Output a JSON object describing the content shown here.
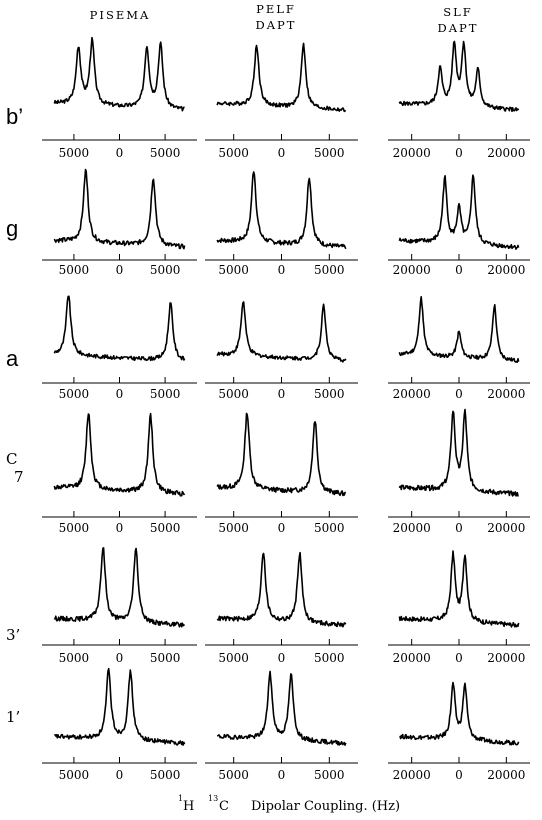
{
  "columns": [
    {
      "title": [
        "PISEMA"
      ]
    },
    {
      "title": [
        "PELF",
        "DAPT"
      ]
    },
    {
      "title": [
        "SLF",
        "DAPT"
      ]
    }
  ],
  "rows": [
    {
      "label": "b’"
    },
    {
      "label": "g"
    },
    {
      "label": "a"
    },
    {
      "label": "C",
      "sub": "7"
    },
    {
      "label": "3’"
    },
    {
      "label": "1’"
    }
  ],
  "xlabel": {
    "h_sup": "1",
    "h": "H",
    "c_sup": "13",
    "c": "C",
    "text": "Dipolar Coupling. (Hz)"
  },
  "chart_data": {
    "type": "line",
    "title": "",
    "xlabel": "1H 13C Dipolar Coupling. (Hz)",
    "ylabel": "",
    "panels": [
      {
        "row": "b’",
        "column": "PISEMA",
        "xlim": [
          -8500,
          8500
        ],
        "ticks": [
          -5000,
          0,
          5000
        ],
        "tick_labels": [
          "5000",
          "0",
          "5000"
        ],
        "peaks": [
          {
            "x": -4500,
            "h": 0.85
          },
          {
            "x": -3000,
            "h": 0.95
          },
          {
            "x": 3000,
            "h": 0.9
          },
          {
            "x": 4500,
            "h": 0.95
          }
        ]
      },
      {
        "row": "b’",
        "column": "PELF DAPT",
        "xlim": [
          -8000,
          8000
        ],
        "ticks": [
          -5000,
          0,
          5000
        ],
        "tick_labels": [
          "5000",
          "0",
          "5000"
        ],
        "peaks": [
          {
            "x": -2600,
            "h": 0.9
          },
          {
            "x": 2300,
            "h": 0.95
          }
        ]
      },
      {
        "row": "b’",
        "column": "SLF DAPT",
        "xlim": [
          -30000,
          30000
        ],
        "ticks": [
          -20000,
          0,
          20000
        ],
        "tick_labels": [
          "20000",
          "0",
          "20000"
        ],
        "peaks": [
          {
            "x": -8000,
            "h": 0.55
          },
          {
            "x": -2000,
            "h": 0.9
          },
          {
            "x": 2000,
            "h": 0.9
          },
          {
            "x": 8000,
            "h": 0.55
          }
        ]
      },
      {
        "row": "g",
        "column": "PISEMA",
        "xlim": [
          -8500,
          8500
        ],
        "ticks": [
          -5000,
          0,
          5000
        ],
        "tick_labels": [
          "5000",
          "0",
          "5000"
        ],
        "peaks": [
          {
            "x": -3700,
            "h": 0.95
          },
          {
            "x": 3700,
            "h": 0.9
          }
        ]
      },
      {
        "row": "g",
        "column": "PELF DAPT",
        "xlim": [
          -8000,
          8000
        ],
        "ticks": [
          -5000,
          0,
          5000
        ],
        "tick_labels": [
          "5000",
          "0",
          "5000"
        ],
        "peaks": [
          {
            "x": -2900,
            "h": 0.95
          },
          {
            "x": 2900,
            "h": 0.9
          }
        ]
      },
      {
        "row": "g",
        "column": "SLF DAPT",
        "xlim": [
          -30000,
          30000
        ],
        "ticks": [
          -20000,
          0,
          20000
        ],
        "tick_labels": [
          "20000",
          "0",
          "20000"
        ],
        "peaks": [
          {
            "x": -6000,
            "h": 0.85
          },
          {
            "x": 0,
            "h": 0.45
          },
          {
            "x": 6000,
            "h": 0.9
          }
        ]
      },
      {
        "row": "a",
        "column": "PISEMA",
        "xlim": [
          -8500,
          8500
        ],
        "ticks": [
          -5000,
          0,
          5000
        ],
        "tick_labels": [
          "5000",
          "0",
          "5000"
        ],
        "peaks": [
          {
            "x": -5600,
            "h": 0.95
          },
          {
            "x": 5600,
            "h": 0.9
          }
        ]
      },
      {
        "row": "a",
        "column": "PELF DAPT",
        "xlim": [
          -8000,
          8000
        ],
        "ticks": [
          -5000,
          0,
          5000
        ],
        "tick_labels": [
          "5000",
          "0",
          "5000"
        ],
        "peaks": [
          {
            "x": -4000,
            "h": 0.85
          },
          {
            "x": 4400,
            "h": 0.85
          }
        ]
      },
      {
        "row": "a",
        "column": "SLF DAPT",
        "xlim": [
          -30000,
          30000
        ],
        "ticks": [
          -20000,
          0,
          20000
        ],
        "tick_labels": [
          "20000",
          "0",
          "20000"
        ],
        "peaks": [
          {
            "x": -16000,
            "h": 0.9
          },
          {
            "x": 0,
            "h": 0.4
          },
          {
            "x": 15000,
            "h": 0.85
          }
        ]
      },
      {
        "row": "C7",
        "column": "PISEMA",
        "xlim": [
          -8500,
          8500
        ],
        "ticks": [
          -5000,
          0,
          5000
        ],
        "tick_labels": [
          "5000",
          "0",
          "5000"
        ],
        "peaks": [
          {
            "x": -3400,
            "h": 0.95
          },
          {
            "x": 3400,
            "h": 0.95
          }
        ]
      },
      {
        "row": "C7",
        "column": "PELF DAPT",
        "xlim": [
          -8000,
          8000
        ],
        "ticks": [
          -5000,
          0,
          5000
        ],
        "tick_labels": [
          "5000",
          "0",
          "5000"
        ],
        "peaks": [
          {
            "x": -3600,
            "h": 0.95
          },
          {
            "x": 3500,
            "h": 0.9
          }
        ]
      },
      {
        "row": "C7",
        "column": "SLF DAPT",
        "xlim": [
          -30000,
          30000
        ],
        "ticks": [
          -20000,
          0,
          20000
        ],
        "tick_labels": [
          "20000",
          "0",
          "20000"
        ],
        "peaks": [
          {
            "x": -2500,
            "h": 0.95
          },
          {
            "x": 2500,
            "h": 0.95
          }
        ]
      },
      {
        "row": "3’",
        "column": "PISEMA",
        "xlim": [
          -8500,
          8500
        ],
        "ticks": [
          -5000,
          0,
          5000
        ],
        "tick_labels": [
          "5000",
          "0",
          "5000"
        ],
        "peaks": [
          {
            "x": -1800,
            "h": 0.95
          },
          {
            "x": 1800,
            "h": 0.95
          }
        ]
      },
      {
        "row": "3’",
        "column": "PELF DAPT",
        "xlim": [
          -8000,
          8000
        ],
        "ticks": [
          -5000,
          0,
          5000
        ],
        "tick_labels": [
          "5000",
          "0",
          "5000"
        ],
        "peaks": [
          {
            "x": -1900,
            "h": 0.9
          },
          {
            "x": 1900,
            "h": 0.9
          }
        ]
      },
      {
        "row": "3’",
        "column": "SLF DAPT",
        "xlim": [
          -30000,
          30000
        ],
        "ticks": [
          -20000,
          0,
          20000
        ],
        "tick_labels": [
          "20000",
          "0",
          "20000"
        ],
        "peaks": [
          {
            "x": -2500,
            "h": 0.85
          },
          {
            "x": 2500,
            "h": 0.85
          }
        ]
      },
      {
        "row": "1’",
        "column": "PISEMA",
        "xlim": [
          -8500,
          8500
        ],
        "ticks": [
          -5000,
          0,
          5000
        ],
        "tick_labels": [
          "5000",
          "0",
          "5000"
        ],
        "peaks": [
          {
            "x": -1200,
            "h": 0.95
          },
          {
            "x": 1200,
            "h": 0.95
          }
        ]
      },
      {
        "row": "1’",
        "column": "PELF DAPT",
        "xlim": [
          -8000,
          8000
        ],
        "ticks": [
          -5000,
          0,
          5000
        ],
        "tick_labels": [
          "5000",
          "0",
          "5000"
        ],
        "peaks": [
          {
            "x": -1200,
            "h": 0.9
          },
          {
            "x": 1000,
            "h": 0.9
          }
        ]
      },
      {
        "row": "1’",
        "column": "SLF DAPT",
        "xlim": [
          -30000,
          30000
        ],
        "ticks": [
          -20000,
          0,
          20000
        ],
        "tick_labels": [
          "20000",
          "0",
          "20000"
        ],
        "peaks": [
          {
            "x": -2500,
            "h": 0.75
          },
          {
            "x": 2500,
            "h": 0.75
          }
        ]
      }
    ]
  }
}
